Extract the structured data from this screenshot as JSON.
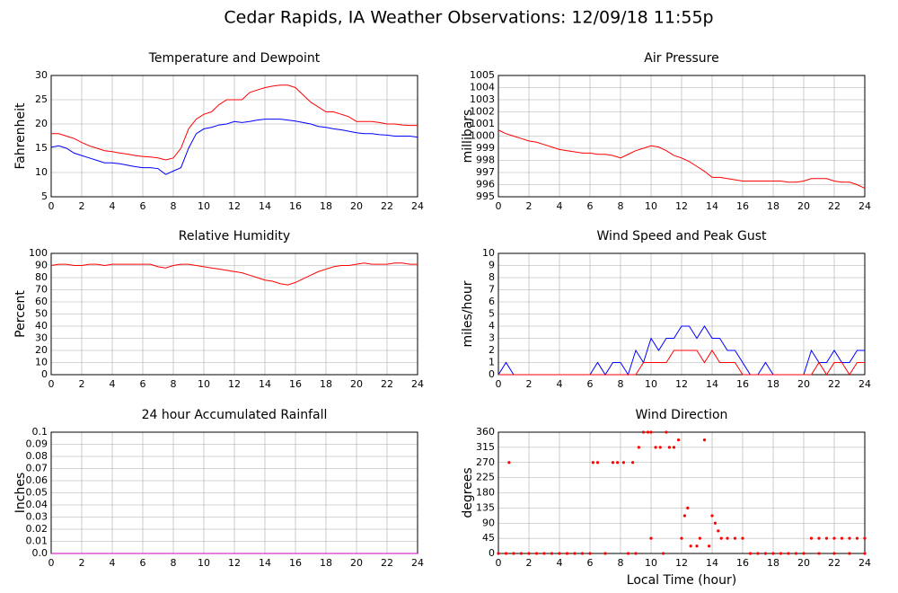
{
  "title": "Cedar Rapids, IA Weather Observations: 12/09/18 11:55p",
  "chart_data": [
    {
      "type": "line",
      "title": "Temperature and Dewpoint",
      "ylabel": "Fahrenheit",
      "grid": true,
      "x": [
        0,
        0.5,
        1,
        1.5,
        2,
        2.5,
        3,
        3.5,
        4,
        4.5,
        5,
        5.5,
        6,
        6.5,
        7,
        7.5,
        8,
        8.5,
        9,
        9.5,
        10,
        10.5,
        11,
        11.5,
        12,
        12.5,
        13,
        13.5,
        14,
        14.5,
        15,
        15.5,
        16,
        16.5,
        17,
        17.5,
        18,
        18.5,
        19,
        19.5,
        20,
        20.5,
        21,
        21.5,
        22,
        22.5,
        23,
        23.5,
        24
      ],
      "xlim": [
        0,
        24
      ],
      "xticks": [
        0,
        2,
        4,
        6,
        8,
        10,
        12,
        14,
        16,
        18,
        20,
        22,
        24
      ],
      "ylim": [
        5,
        30
      ],
      "yticks": [
        5,
        10,
        15,
        20,
        25,
        30
      ],
      "series": [
        {
          "color": "#ff0000",
          "values": [
            18,
            18,
            17.5,
            17,
            16.2,
            15.5,
            15,
            14.5,
            14.3,
            14,
            13.8,
            13.5,
            13.3,
            13.2,
            13,
            12.6,
            13,
            15,
            19,
            21,
            22,
            22.5,
            24,
            25,
            25,
            25,
            26.5,
            27,
            27.5,
            27.8,
            28,
            28,
            27.5,
            26,
            24.5,
            23.5,
            22.5,
            22.5,
            22,
            21.5,
            20.5,
            20.5,
            20.5,
            20.3,
            20,
            20,
            19.8,
            19.7,
            19.7
          ]
        },
        {
          "color": "#0000ff",
          "values": [
            15.2,
            15.5,
            15,
            14,
            13.5,
            13,
            12.5,
            12,
            12,
            11.8,
            11.5,
            11.2,
            11,
            11,
            10.8,
            9.6,
            10.3,
            11,
            15,
            18,
            19,
            19.3,
            19.8,
            20,
            20.5,
            20.3,
            20.5,
            20.8,
            21,
            21,
            21,
            20.8,
            20.6,
            20.3,
            20,
            19.5,
            19.3,
            19,
            18.8,
            18.5,
            18.2,
            18,
            18,
            17.8,
            17.7,
            17.5,
            17.5,
            17.5,
            17.3
          ]
        }
      ]
    },
    {
      "type": "line",
      "title": "Air Pressure",
      "ylabel": "millibars",
      "grid": true,
      "x": [
        0,
        0.5,
        1,
        1.5,
        2,
        2.5,
        3,
        3.5,
        4,
        4.5,
        5,
        5.5,
        6,
        6.5,
        7,
        7.5,
        8,
        8.5,
        9,
        9.5,
        10,
        10.5,
        11,
        11.5,
        12,
        12.5,
        13,
        13.5,
        14,
        14.5,
        15,
        15.5,
        16,
        16.5,
        17,
        17.5,
        18,
        18.5,
        19,
        19.5,
        20,
        20.5,
        21,
        21.5,
        22,
        22.5,
        23,
        23.5,
        24
      ],
      "xlim": [
        0,
        24
      ],
      "xticks": [
        0,
        2,
        4,
        6,
        8,
        10,
        12,
        14,
        16,
        18,
        20,
        22,
        24
      ],
      "ylim": [
        995,
        1005
      ],
      "yticks": [
        995,
        996,
        997,
        998,
        999,
        1000,
        1001,
        1002,
        1003,
        1004,
        1005
      ],
      "series": [
        {
          "color": "#ff0000",
          "values": [
            1000.5,
            1000.2,
            1000,
            999.8,
            999.6,
            999.5,
            999.3,
            999.1,
            998.9,
            998.8,
            998.7,
            998.6,
            998.6,
            998.5,
            998.5,
            998.4,
            998.2,
            998.5,
            998.8,
            999,
            999.2,
            999.1,
            998.8,
            998.4,
            998.2,
            997.9,
            997.5,
            997.1,
            996.6,
            996.6,
            996.5,
            996.4,
            996.3,
            996.3,
            996.3,
            996.3,
            996.3,
            996.3,
            996.2,
            996.2,
            996.3,
            996.5,
            996.5,
            996.5,
            996.3,
            996.2,
            996.2,
            996,
            995.7
          ]
        }
      ]
    },
    {
      "type": "line",
      "title": "Relative Humidity",
      "ylabel": "Percent",
      "grid": true,
      "x": [
        0,
        0.5,
        1,
        1.5,
        2,
        2.5,
        3,
        3.5,
        4,
        4.5,
        5,
        5.5,
        6,
        6.5,
        7,
        7.5,
        8,
        8.5,
        9,
        9.5,
        10,
        10.5,
        11,
        11.5,
        12,
        12.5,
        13,
        13.5,
        14,
        14.5,
        15,
        15.5,
        16,
        16.5,
        17,
        17.5,
        18,
        18.5,
        19,
        19.5,
        20,
        20.5,
        21,
        21.5,
        22,
        22.5,
        23,
        23.5,
        24
      ],
      "xlim": [
        0,
        24
      ],
      "xticks": [
        0,
        2,
        4,
        6,
        8,
        10,
        12,
        14,
        16,
        18,
        20,
        22,
        24
      ],
      "ylim": [
        0,
        100
      ],
      "yticks": [
        0,
        10,
        20,
        30,
        40,
        50,
        60,
        70,
        80,
        90,
        100
      ],
      "series": [
        {
          "color": "#ff0000",
          "values": [
            90,
            91,
            91,
            90,
            90,
            91,
            91,
            90,
            91,
            91,
            91,
            91,
            91,
            91,
            89,
            88,
            90,
            91,
            91,
            90,
            89,
            88,
            87,
            86,
            85,
            84,
            82,
            80,
            78,
            77,
            75,
            74,
            76,
            79,
            82,
            85,
            87,
            89,
            90,
            90,
            91,
            92,
            91,
            91,
            91,
            92,
            92,
            91,
            91
          ]
        }
      ]
    },
    {
      "type": "line",
      "title": "Wind Speed and Peak Gust",
      "ylabel": "miles/hour",
      "grid": true,
      "x": [
        0,
        0.5,
        1,
        1.5,
        2,
        2.5,
        3,
        3.5,
        4,
        4.5,
        5,
        5.5,
        6,
        6.5,
        7,
        7.5,
        8,
        8.5,
        9,
        9.5,
        10,
        10.5,
        11,
        11.5,
        12,
        12.5,
        13,
        13.5,
        14,
        14.5,
        15,
        15.5,
        16,
        16.5,
        17,
        17.5,
        18,
        18.5,
        19,
        19.5,
        20,
        20.5,
        21,
        21.5,
        22,
        22.5,
        23,
        23.5,
        24
      ],
      "xlim": [
        0,
        24
      ],
      "xticks": [
        0,
        2,
        4,
        6,
        8,
        10,
        12,
        14,
        16,
        18,
        20,
        22,
        24
      ],
      "ylim": [
        0,
        10
      ],
      "yticks": [
        0,
        1,
        2,
        3,
        4,
        5,
        6,
        7,
        8,
        9,
        10
      ],
      "series": [
        {
          "color": "#0000ff",
          "values": [
            0,
            1,
            0,
            0,
            0,
            0,
            0,
            0,
            0,
            0,
            0,
            0,
            0,
            1,
            0,
            1,
            1,
            0,
            2,
            1,
            3,
            2,
            3,
            3,
            4,
            4,
            3,
            4,
            3,
            3,
            2,
            2,
            1,
            0,
            0,
            1,
            0,
            0,
            0,
            0,
            0,
            2,
            1,
            1,
            2,
            1,
            1,
            2,
            2
          ]
        },
        {
          "color": "#ff0000",
          "values": [
            0,
            0,
            0,
            0,
            0,
            0,
            0,
            0,
            0,
            0,
            0,
            0,
            0,
            0,
            0,
            0,
            0,
            0,
            0,
            1,
            1,
            1,
            1,
            2,
            2,
            2,
            2,
            1,
            2,
            1,
            1,
            1,
            0,
            0,
            0,
            0,
            0,
            0,
            0,
            0,
            0,
            0,
            1,
            0,
            1,
            1,
            0,
            1,
            1
          ]
        }
      ]
    },
    {
      "type": "line",
      "title": "24 hour Accumulated Rainfall",
      "ylabel": "Inches",
      "grid": true,
      "x": [
        0,
        24
      ],
      "xlim": [
        0,
        24
      ],
      "xticks": [
        0,
        2,
        4,
        6,
        8,
        10,
        12,
        14,
        16,
        18,
        20,
        22,
        24
      ],
      "ylim": [
        0,
        0.1
      ],
      "yticks": [
        {
          "value": 0,
          "label": "0.0"
        },
        0.01,
        0.02,
        0.03,
        0.04,
        0.05,
        0.06,
        0.07,
        0.08,
        0.09,
        {
          "value": 0.1,
          "label": "0.1"
        }
      ],
      "series": [
        {
          "color": "#cc00cc",
          "values": [
            0,
            0
          ]
        }
      ]
    },
    {
      "type": "scatter",
      "title": "Wind Direction",
      "ylabel": "degrees",
      "xlabel": "Local Time (hour)",
      "grid": true,
      "x": [
        0,
        0.5,
        1,
        1.5,
        2,
        2.5,
        3,
        3.5,
        4,
        4.5,
        5,
        5.5,
        6,
        7,
        8.5,
        9,
        0.7,
        6.2,
        6.5,
        7.5,
        7.8,
        8.2,
        8.8,
        9.2,
        9.5,
        9.8,
        10,
        10,
        10.3,
        10.6,
        10.8,
        11,
        11.2,
        11.5,
        11.8,
        12,
        12.2,
        12.4,
        12.6,
        13,
        13.2,
        13.5,
        13.8,
        14,
        14.2,
        14.4,
        14.6,
        15,
        15.5,
        16,
        16.5,
        17,
        17.5,
        18,
        18.5,
        19,
        19.5,
        20,
        20.5,
        21,
        21.5,
        22,
        22.5,
        23,
        23.5,
        24,
        21,
        22,
        23,
        24
      ],
      "xlim": [
        0,
        24
      ],
      "xticks": [
        0,
        2,
        4,
        6,
        8,
        10,
        12,
        14,
        16,
        18,
        20,
        22,
        24
      ],
      "ylim": [
        0,
        360
      ],
      "yticks": [
        0,
        45,
        90,
        135,
        180,
        225,
        270,
        315,
        360
      ],
      "series": [
        {
          "color": "#ff0000",
          "values": [
            0,
            0,
            0,
            0,
            0,
            0,
            0,
            0,
            0,
            0,
            0,
            0,
            0,
            0,
            0,
            0,
            270,
            270,
            270,
            270,
            270,
            270,
            270,
            315,
            360,
            360,
            45,
            360,
            315,
            315,
            0,
            360,
            315,
            315,
            337,
            45,
            112,
            135,
            22,
            22,
            45,
            337,
            22,
            112,
            90,
            67,
            45,
            45,
            45,
            45,
            0,
            0,
            0,
            0,
            0,
            0,
            0,
            0,
            45,
            45,
            45,
            45,
            45,
            45,
            45,
            45,
            0,
            0,
            0,
            0
          ]
        }
      ]
    }
  ]
}
